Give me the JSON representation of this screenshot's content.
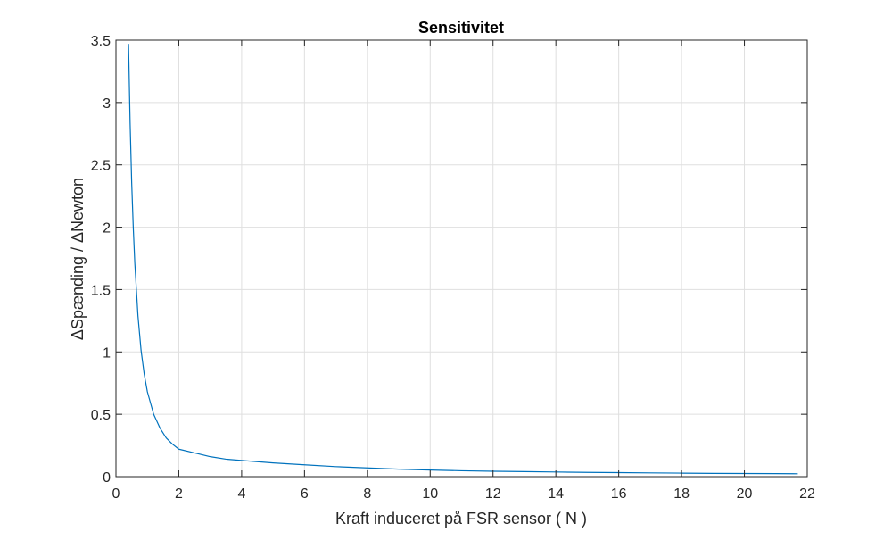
{
  "chart_data": {
    "type": "line",
    "title": "Sensitivitet",
    "xlabel": "Kraft induceret på FSR sensor ( N )",
    "ylabel": "ΔSpænding / ΔNewton",
    "xlim": [
      0,
      22
    ],
    "ylim": [
      0,
      3.5
    ],
    "xticks": [
      0,
      2,
      4,
      6,
      8,
      10,
      12,
      14,
      16,
      18,
      20,
      22
    ],
    "yticks": [
      0,
      0.5,
      1,
      1.5,
      2,
      2.5,
      3,
      3.5
    ],
    "xtick_labels": [
      "0",
      "2",
      "4",
      "6",
      "8",
      "10",
      "12",
      "14",
      "16",
      "18",
      "20",
      "22"
    ],
    "ytick_labels": [
      "0",
      "0.5",
      "1",
      "1.5",
      "2",
      "2.5",
      "3",
      "3.5"
    ],
    "grid": true,
    "series": [
      {
        "color": "#0072bd",
        "x": [
          0.4,
          0.45,
          0.5,
          0.55,
          0.6,
          0.7,
          0.8,
          0.9,
          1.0,
          1.2,
          1.4,
          1.6,
          1.8,
          2.0,
          2.5,
          3.0,
          3.5,
          4.0,
          5.0,
          6.0,
          7.0,
          8.0,
          9.0,
          10.0,
          11.0,
          12.0,
          13.0,
          14.0,
          15.0,
          16.0,
          17.0,
          18.0,
          19.0,
          20.0,
          21.0,
          21.7
        ],
        "y": [
          3.47,
          2.84,
          2.36,
          2.0,
          1.71,
          1.29,
          1.01,
          0.82,
          0.68,
          0.5,
          0.39,
          0.31,
          0.26,
          0.22,
          0.19,
          0.16,
          0.14,
          0.13,
          0.11,
          0.095,
          0.08,
          0.07,
          0.06,
          0.053,
          0.047,
          0.043,
          0.04,
          0.037,
          0.034,
          0.032,
          0.03,
          0.028,
          0.026,
          0.025,
          0.024,
          0.023
        ]
      }
    ]
  }
}
